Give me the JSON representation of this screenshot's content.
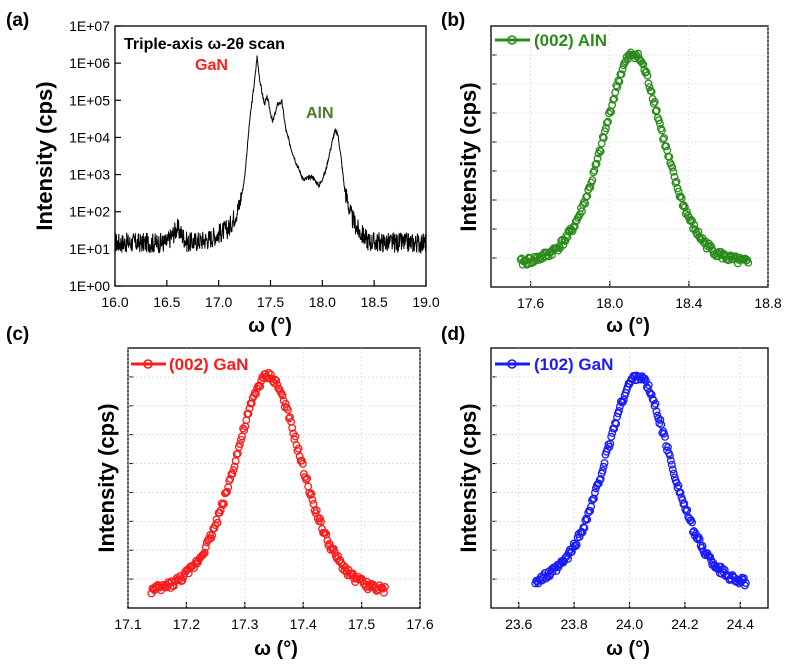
{
  "chart_data": [
    {
      "panel_label": "(a)",
      "type": "line",
      "scale_y": "log",
      "title": "Triple-axis ω-2θ scan",
      "xlabel": "ω (°)",
      "ylabel": "Intensity (cps)",
      "xlim": [
        16.0,
        19.0
      ],
      "ylim": [
        1,
        10000000
      ],
      "xticks": [
        "16.0",
        "16.5",
        "17.0",
        "17.5",
        "18.0",
        "18.5",
        "19.0"
      ],
      "yticks": [
        "1E+00",
        "1E+01",
        "1E+02",
        "1E+03",
        "1E+04",
        "1E+05",
        "1E+06",
        "1E+07"
      ],
      "annotations": [
        {
          "text": "GaN",
          "color": "#ff2020",
          "x": 17.4,
          "y": 700000
        },
        {
          "text": "AlN",
          "color": "#4a7a28",
          "x": 18.1,
          "y": 120000
        }
      ],
      "series": [
        {
          "name": "ω-2θ scan",
          "color": "#000000",
          "x": [
            16.0,
            16.5,
            16.6,
            16.7,
            16.9,
            17.1,
            17.2,
            17.25,
            17.3,
            17.35,
            17.37,
            17.4,
            17.44,
            17.47,
            17.52,
            17.57,
            17.61,
            17.65,
            17.7,
            17.75,
            17.82,
            17.9,
            17.97,
            18.03,
            18.08,
            18.12,
            18.15,
            18.18,
            18.22,
            18.28,
            18.35,
            18.45,
            18.7,
            19.0
          ],
          "y": [
            12,
            12,
            30,
            12,
            15,
            30,
            120,
            800,
            30000,
            400000,
            1500000,
            300000,
            80000,
            120000,
            25000,
            80000,
            90000,
            15000,
            5000,
            2000,
            700,
            900,
            500,
            1200,
            5000,
            15000,
            12000,
            3000,
            300,
            60,
            25,
            13,
            12,
            12
          ]
        }
      ]
    },
    {
      "panel_label": "(b)",
      "type": "scatter",
      "xlabel": "ω (°)",
      "ylabel": "Intensity (cps)",
      "xlim": [
        17.4,
        18.8
      ],
      "xticks": [
        "17.6",
        "18.0",
        "18.4",
        "18.8"
      ],
      "legend": "(002) AlN",
      "series": [
        {
          "name": "(002) AlN",
          "color": "#2a8a1a",
          "center": 18.12,
          "fwhm": 0.37,
          "xmin": 17.55,
          "xmax": 18.7,
          "baseline_fraction": 0.04
        }
      ]
    },
    {
      "panel_label": "(c)",
      "type": "scatter",
      "xlabel": "ω (°)",
      "ylabel": "Intensity (cps)",
      "xlim": [
        17.1,
        17.6
      ],
      "xticks": [
        "17.1",
        "17.2",
        "17.3",
        "17.4",
        "17.5",
        "17.6"
      ],
      "legend": "(002) GaN",
      "series": [
        {
          "name": "(002) GaN",
          "color": "#ff1a1a",
          "center": 17.34,
          "fwhm": 0.14,
          "xmin": 17.14,
          "xmax": 17.54,
          "baseline_fraction": 0.0
        }
      ]
    },
    {
      "panel_label": "(d)",
      "type": "scatter",
      "xlabel": "ω (°)",
      "ylabel": "Intensity (cps)",
      "xlim": [
        23.5,
        24.5
      ],
      "xticks": [
        "23.6",
        "23.8",
        "24.0",
        "24.2",
        "24.4"
      ],
      "legend": "(102) GaN",
      "series": [
        {
          "name": "(102) GaN",
          "color": "#1a1aff",
          "center": 24.03,
          "fwhm": 0.29,
          "xmin": 23.66,
          "xmax": 24.42,
          "baseline_fraction": 0.03
        }
      ]
    }
  ]
}
